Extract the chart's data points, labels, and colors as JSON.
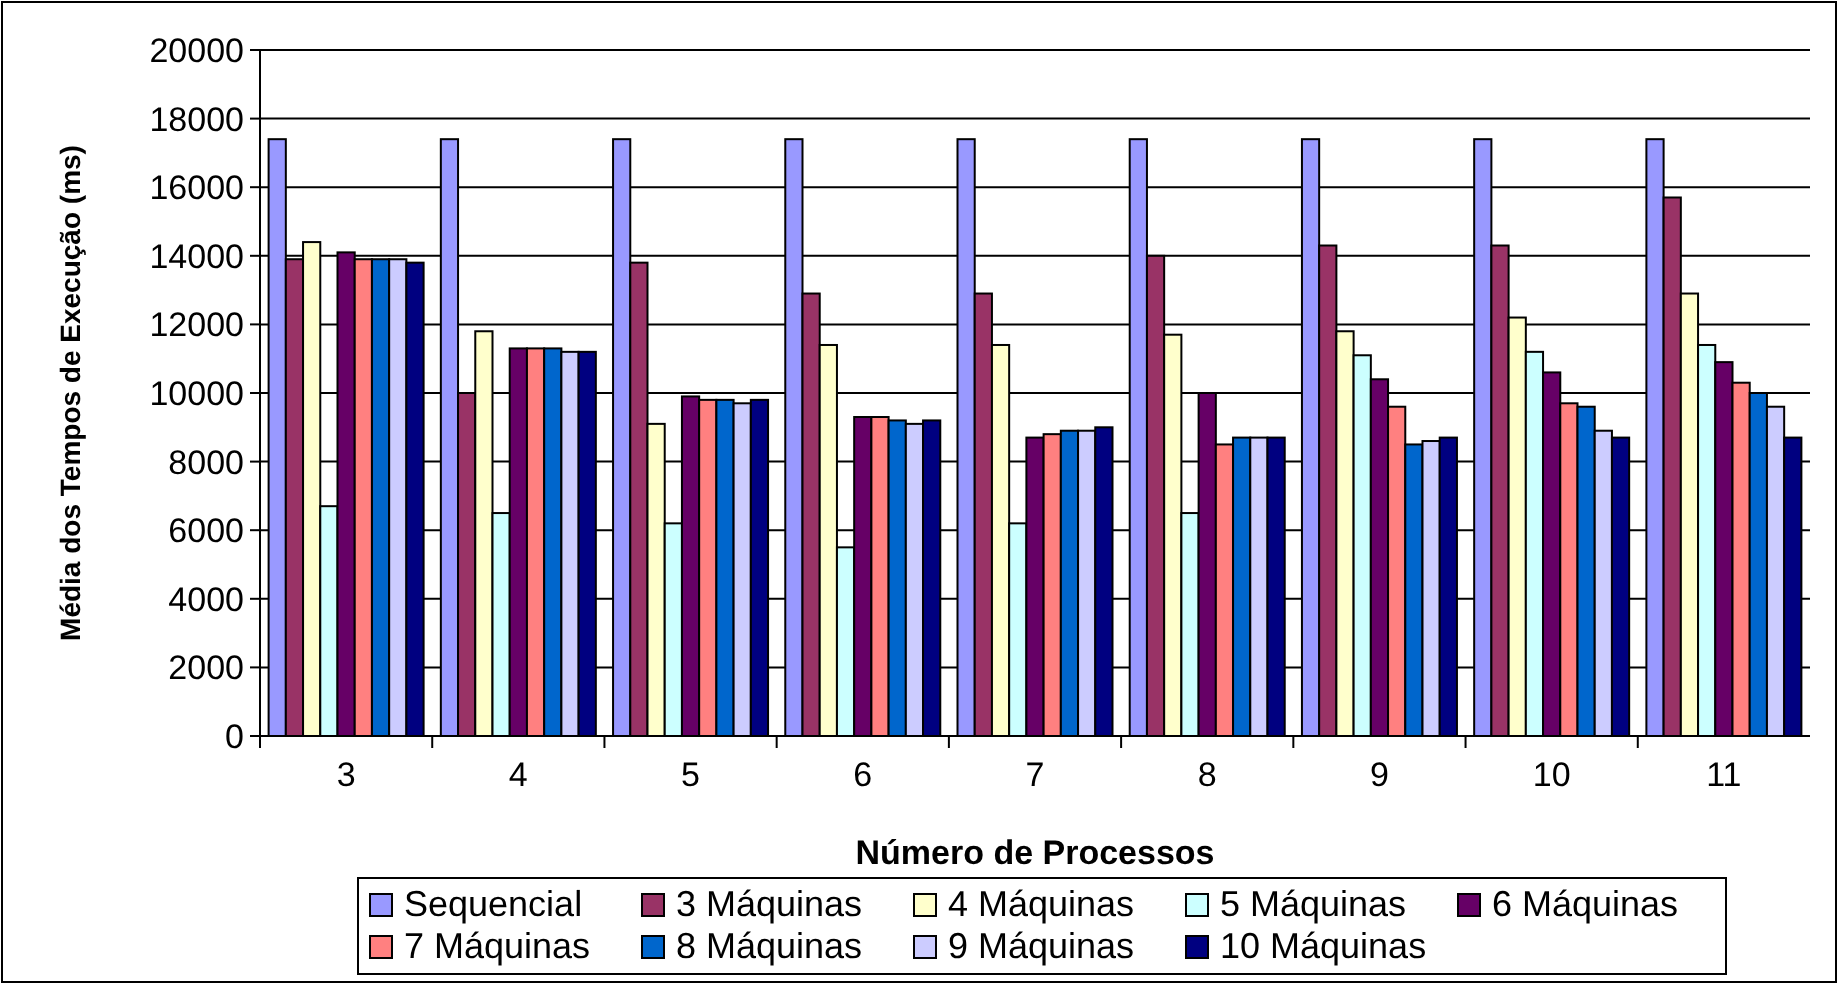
{
  "chart_data": {
    "type": "bar",
    "xlabel": "Número de Processos",
    "ylabel": "Média dos Tempos de Execução (ms)",
    "categories": [
      "3",
      "4",
      "5",
      "6",
      "7",
      "8",
      "9",
      "10",
      "11"
    ],
    "ylim": [
      0,
      20000
    ],
    "yticks": [
      0,
      2000,
      4000,
      6000,
      8000,
      10000,
      12000,
      14000,
      16000,
      18000,
      20000
    ],
    "grid": "y",
    "legend": "bottom",
    "series": [
      {
        "name": "Sequencial",
        "color": "#9999ff",
        "values": [
          17400,
          17400,
          17400,
          17400,
          17400,
          17400,
          17400,
          17400,
          17400
        ]
      },
      {
        "name": "3 Máquinas",
        "color": "#993366",
        "values": [
          13900,
          10000,
          13800,
          12900,
          12900,
          14000,
          14300,
          14300,
          15700
        ]
      },
      {
        "name": "4 Máquinas",
        "color": "#ffffcc",
        "values": [
          14400,
          11800,
          9100,
          11400,
          11400,
          11700,
          11800,
          12200,
          12900
        ]
      },
      {
        "name": "5 Máquinas",
        "color": "#ccffff",
        "values": [
          6700,
          6500,
          6200,
          5500,
          6200,
          6500,
          11100,
          11200,
          11400
        ]
      },
      {
        "name": "6 Máquinas",
        "color": "#660066",
        "values": [
          14100,
          11300,
          9900,
          9300,
          8700,
          10000,
          10400,
          10600,
          10900
        ]
      },
      {
        "name": "7 Máquinas",
        "color": "#ff8080",
        "values": [
          13900,
          11300,
          9800,
          9300,
          8800,
          8500,
          9600,
          9700,
          10300
        ]
      },
      {
        "name": "8 Máquinas",
        "color": "#0066cc",
        "values": [
          13900,
          11300,
          9800,
          9200,
          8900,
          8700,
          8500,
          9600,
          10000
        ]
      },
      {
        "name": "9 Máquinas",
        "color": "#ccccff",
        "values": [
          13900,
          11200,
          9700,
          9100,
          8900,
          8700,
          8600,
          8900,
          9600
        ]
      },
      {
        "name": "10 Máquinas",
        "color": "#000080",
        "values": [
          13800,
          11200,
          9800,
          9200,
          9000,
          8700,
          8700,
          8700,
          8700
        ]
      }
    ]
  }
}
